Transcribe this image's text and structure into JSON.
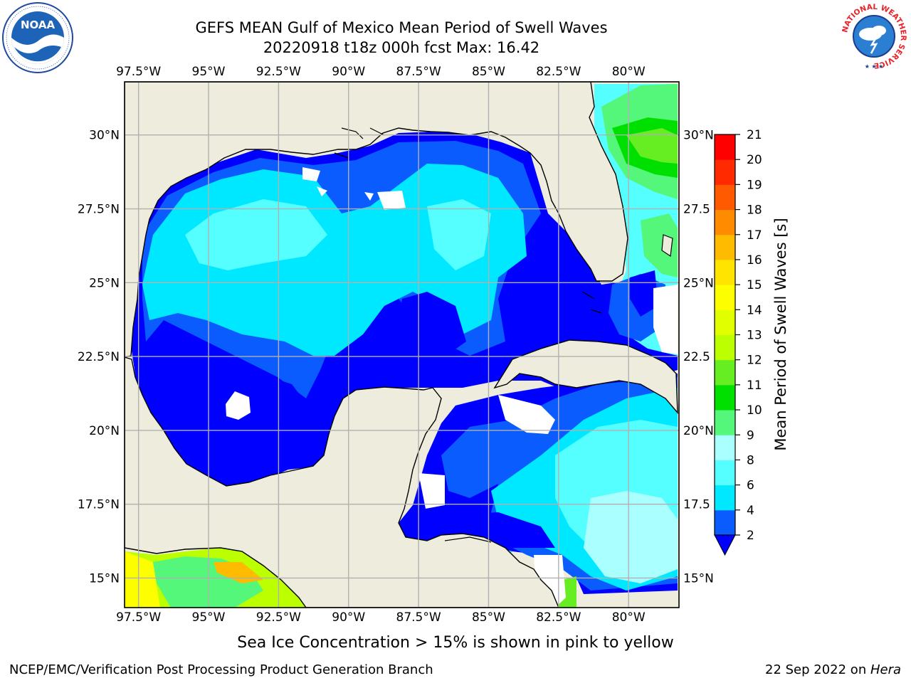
{
  "title": {
    "line1": "GEFS MEAN Gulf of Mexico Mean Period of Swell Waves",
    "line2": "20220918 t18z 000h fcst   Max: 16.42"
  },
  "map": {
    "lon_labels": [
      "97.5°W",
      "95°W",
      "92.5°W",
      "90°W",
      "87.5°W",
      "85°W",
      "82.5°W",
      "80°W"
    ],
    "lat_labels_left": [
      "30°N",
      "27.5°N",
      "25°N",
      "22.5°N",
      "20°N",
      "17.5°N",
      "15°N"
    ],
    "lat_labels_right": [
      "30°N",
      "27.5",
      "25°N",
      "22.5",
      "20°N",
      "17.5",
      "15°N"
    ],
    "land_color": "#eeecdd",
    "grid_color": "#b0b0b0"
  },
  "colorbar": {
    "label": "Mean Period of Swell Waves [s]",
    "ticks": [
      "2",
      "4",
      "6",
      "8",
      "9",
      "10",
      "11",
      "12",
      "13",
      "14",
      "15",
      "16",
      "17",
      "18",
      "19",
      "20",
      "21"
    ],
    "colors": [
      "#0a5cff",
      "#00e8ff",
      "#55ffff",
      "#aaffff",
      "#55f77a",
      "#00e000",
      "#66ee22",
      "#bbff00",
      "#e2ff00",
      "#fdff00",
      "#ffe400",
      "#ffbb00",
      "#ff8c00",
      "#ff5a00",
      "#ff2a00",
      "#ff0000"
    ],
    "extend_color": "#0000ff"
  },
  "note": "Sea Ice Concentration > 15% is shown in pink to yellow",
  "footer": {
    "left": "NCEP/EMC/Verification Post Processing Product Generation Branch",
    "right_prefix": "22 Sep 2022 on ",
    "right_host": "Hera"
  },
  "logos": {
    "noaa_text": "NOAA",
    "nws_ring_text": "NATIONAL WEATHER SERVICE"
  }
}
